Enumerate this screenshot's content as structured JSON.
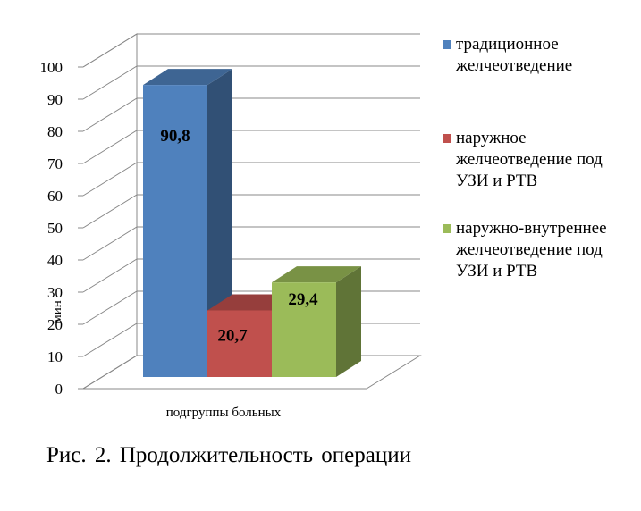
{
  "chart_data": {
    "type": "bar",
    "variant": "3d-clustered",
    "ylabel": "мин",
    "xlabel": "подгруппы больных",
    "ylim": [
      0,
      100
    ],
    "yticks": [
      "0",
      "10",
      "20",
      "30",
      "40",
      "50",
      "60",
      "70",
      "80",
      "90",
      "100"
    ],
    "grid": true,
    "legend_position": "right",
    "series": [
      {
        "name": "традиционное желчеотведение",
        "value": 90.8,
        "label": "90,8",
        "color": "#4F81BD"
      },
      {
        "name": "наружное желчеотведение под УЗИ и РТВ",
        "value": 20.7,
        "label": "20,7",
        "color": "#C0504D"
      },
      {
        "name": "наружно-внутреннее желчеотведение под УЗИ и РТВ",
        "value": 29.4,
        "label": "29,4",
        "color": "#9BBB59"
      }
    ]
  },
  "legend": [
    {
      "text": "традиционное\nжелчеотведение",
      "color": "#4F81BD"
    },
    {
      "text": "наружное\nжелчеотведение под\nУЗИ и РТВ",
      "color": "#C0504D"
    },
    {
      "text": "наружно-внутреннее\nжелчеотведение под\nУЗИ и РТВ",
      "color": "#9BBB59"
    }
  ],
  "caption": "Рис. 2. Продолжительность операции"
}
